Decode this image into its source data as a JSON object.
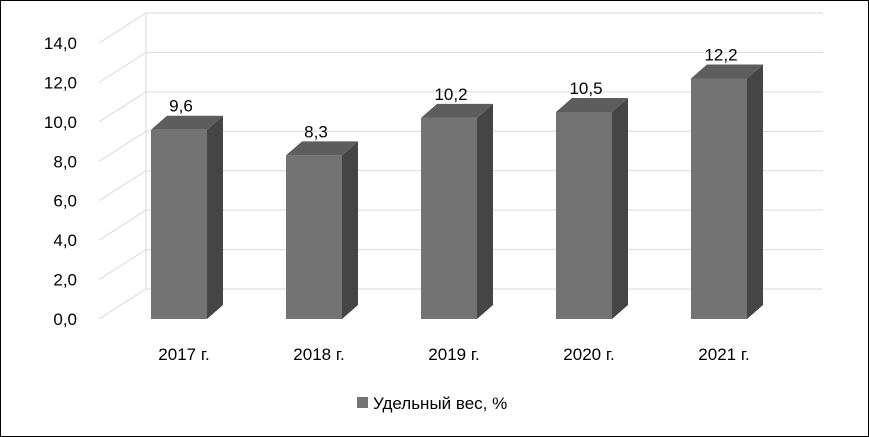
{
  "chart_data": {
    "type": "bar",
    "categories": [
      "2017 г.",
      "2018 г.",
      "2019 г.",
      "2020 г.",
      "2021 г."
    ],
    "series": [
      {
        "name": "Удельный вес, %",
        "values": [
          9.6,
          8.3,
          10.2,
          10.5,
          12.2
        ]
      }
    ],
    "data_labels": [
      "9,6",
      "8,3",
      "10,2",
      "10,5",
      "12,2"
    ],
    "y_tick_labels": [
      "0,0",
      "2,0",
      "4,0",
      "6,0",
      "8,0",
      "10,0",
      "12,0",
      "14,0"
    ],
    "ylim": [
      0,
      14
    ],
    "y_tick_step": 2,
    "grid": true,
    "legend_position": "bottom-center",
    "style": "3d-columns",
    "colors": {
      "front": "#737373",
      "side": "#454545",
      "top": "#5d5d5d",
      "grid": "#d9d9d9"
    }
  }
}
